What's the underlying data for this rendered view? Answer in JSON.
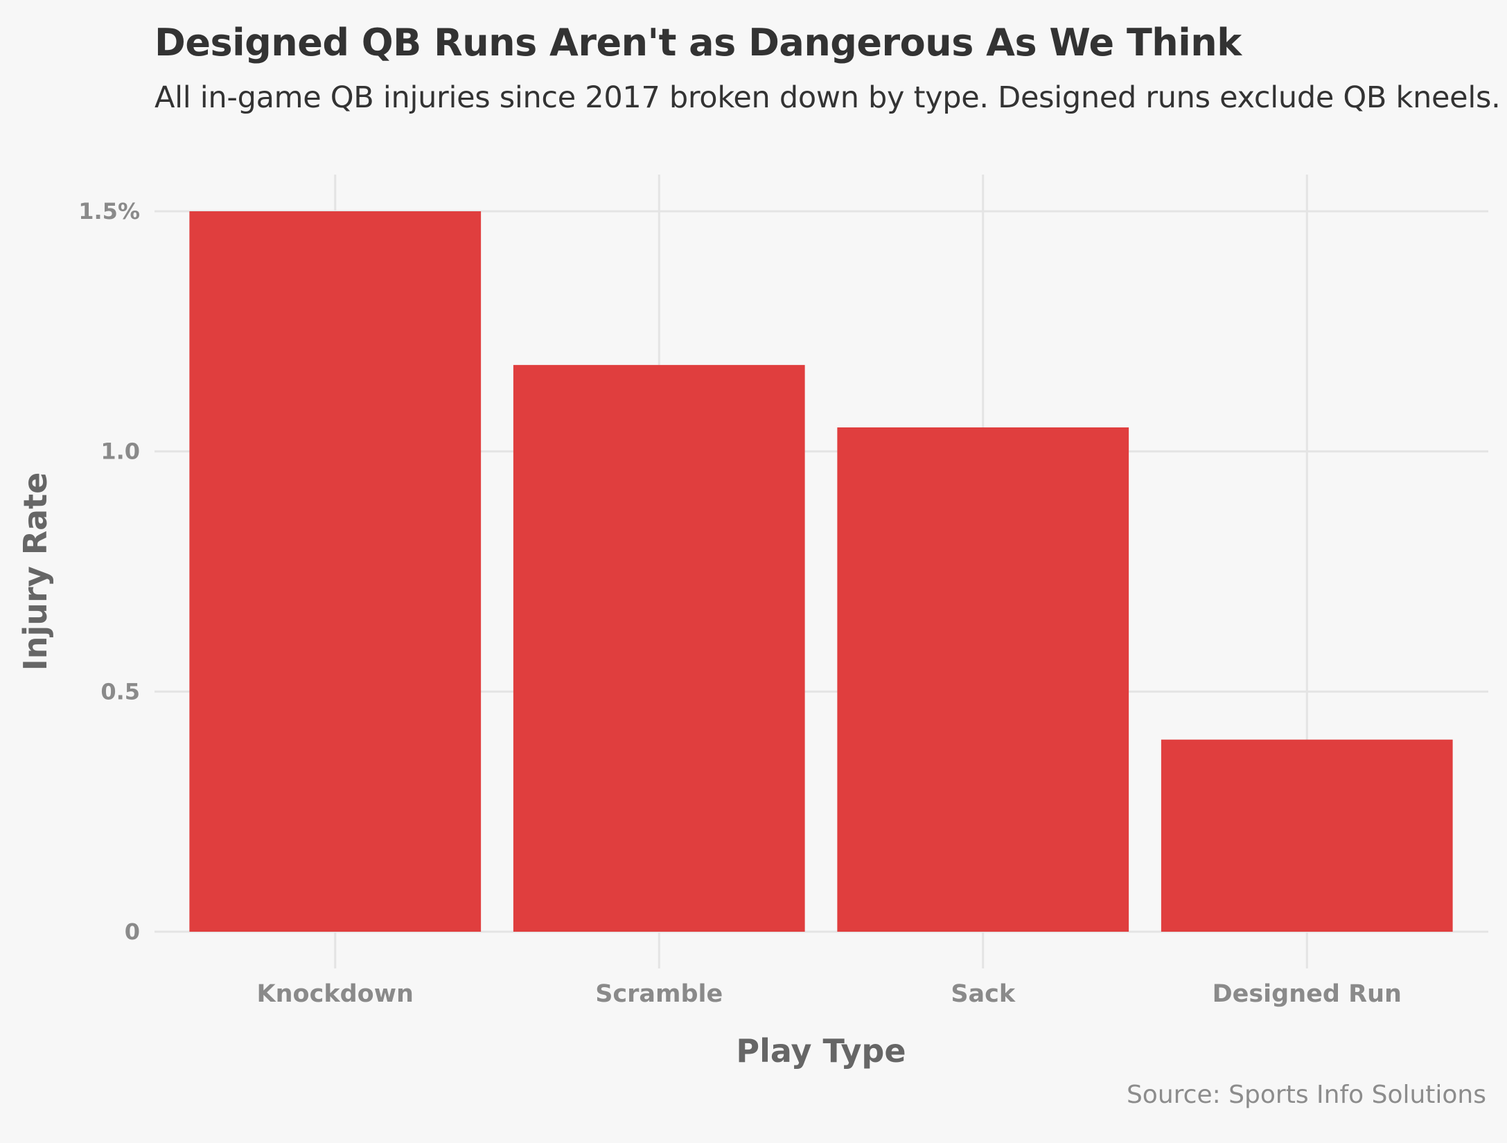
{
  "chart_data": {
    "type": "bar",
    "title": "Designed QB Runs Aren't as Dangerous As We Think",
    "subtitle": "All in-game QB injuries since 2017 broken down by type. Designed runs exclude QB kneels.",
    "caption": "Source: Sports Info Solutions",
    "xlabel": "Play Type",
    "ylabel": "Injury Rate",
    "categories": [
      "Knockdown",
      "Scramble",
      "Sack",
      "Designed Run"
    ],
    "values": [
      1.5,
      1.18,
      1.05,
      0.4
    ],
    "ylim": [
      0,
      1.5
    ],
    "yticks": [
      0,
      0.5,
      1.0,
      1.5
    ],
    "ytick_labels": [
      "0",
      "0.5",
      "1.0",
      "1.5%"
    ],
    "grid": true,
    "legend": "none",
    "colors": {
      "bar": "#e03e3e",
      "grid": "#e4e4e4",
      "background": "#f7f7f7"
    }
  }
}
